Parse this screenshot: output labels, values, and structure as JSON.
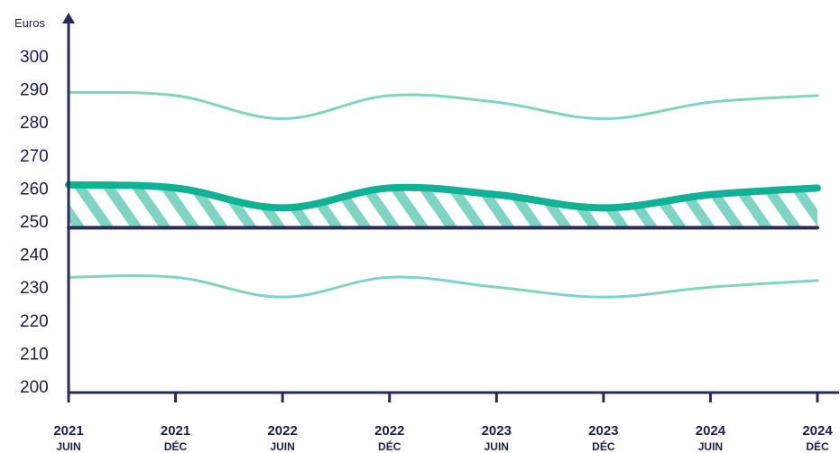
{
  "chart_data": {
    "type": "line",
    "ylabel": "Euros",
    "xlabel": "",
    "ylim": [
      200,
      300
    ],
    "yticks": [
      200,
      210,
      220,
      230,
      240,
      250,
      260,
      270,
      280,
      290,
      300
    ],
    "categories": [
      {
        "year": "2021",
        "period": "JUIN"
      },
      {
        "year": "2021",
        "period": "DÉC"
      },
      {
        "year": "2022",
        "period": "JUIN"
      },
      {
        "year": "2022",
        "period": "DÉC"
      },
      {
        "year": "2023",
        "period": "JUIN"
      },
      {
        "year": "2023",
        "period": "DÉC"
      },
      {
        "year": "2024",
        "period": "JUIN"
      },
      {
        "year": "2024",
        "period": "DÉC"
      }
    ],
    "series": [
      {
        "role": "upper",
        "color": "#7fd4c4",
        "values": [
          289,
          288,
          281,
          288,
          286,
          281,
          286,
          288
        ]
      },
      {
        "role": "main",
        "color": "#10b296",
        "values": [
          261,
          260,
          254,
          260,
          258,
          254,
          258,
          260
        ]
      },
      {
        "role": "lower",
        "color": "#7fd4c4",
        "values": [
          233,
          233,
          227,
          233,
          230,
          227,
          230,
          232
        ]
      },
      {
        "role": "baseline",
        "color": "#2a2b5a",
        "values": [
          248,
          248,
          248,
          248,
          248,
          248,
          248,
          248
        ]
      }
    ],
    "shaded_area": {
      "between": [
        "main",
        "baseline"
      ],
      "pattern": "diagonal-hatch",
      "color": "#7fd4c4"
    },
    "grid": false,
    "legend": "none"
  }
}
